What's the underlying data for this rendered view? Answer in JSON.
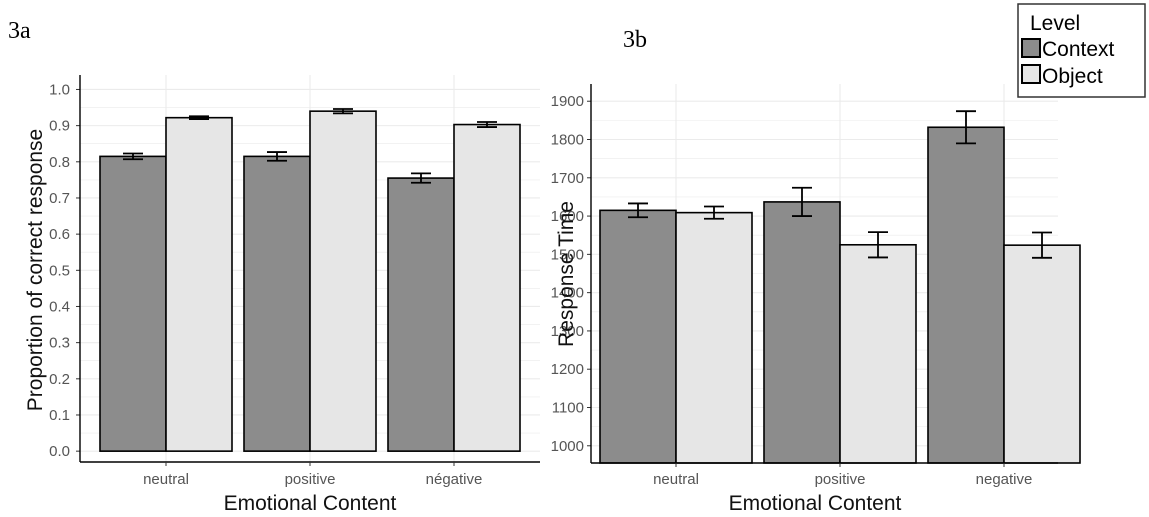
{
  "colors": {
    "context": "#8c8c8c",
    "object": "#e6e6e6",
    "grid": "#ebebeb"
  },
  "legend": {
    "title": "Level",
    "items": [
      {
        "label": "Context",
        "color": "#8c8c8c"
      },
      {
        "label": "Object",
        "color": "#e6e6e6"
      }
    ],
    "placement": "top-right"
  },
  "chart_data": [
    {
      "panel_label": "3a",
      "type": "bar",
      "categories": [
        "neutral",
        "positive",
        "négative"
      ],
      "series": [
        {
          "name": "Context",
          "values": [
            0.815,
            0.815,
            0.755
          ],
          "errors": [
            0.008,
            0.012,
            0.013
          ]
        },
        {
          "name": "Object",
          "values": [
            0.922,
            0.94,
            0.903
          ],
          "errors": [
            0.004,
            0.006,
            0.007
          ]
        }
      ],
      "xlabel": "Emotional Content",
      "ylabel": "Proportion of correct response",
      "ylim": [
        0.0,
        1.0
      ],
      "yticks": [
        "0.0",
        "0.1",
        "0.2",
        "0.3",
        "0.4",
        "0.5",
        "0.6",
        "0.7",
        "0.8",
        "0.9",
        "1.0"
      ],
      "grid": true
    },
    {
      "panel_label": "3b",
      "type": "bar",
      "categories": [
        "neutral",
        "positive",
        "negative"
      ],
      "series": [
        {
          "name": "Context",
          "values": [
            1615,
            1637,
            1832
          ],
          "errors": [
            18,
            37,
            42
          ]
        },
        {
          "name": "Object",
          "values": [
            1609,
            1525,
            1524
          ],
          "errors": [
            16,
            33,
            33
          ]
        }
      ],
      "xlabel": "Emotional Content",
      "ylabel": "Response Time",
      "ylim": [
        1000,
        1900
      ],
      "yticks": [
        "1000",
        "1100",
        "1200",
        "1300",
        "1400",
        "1500",
        "1600",
        "1700",
        "1800",
        "1900"
      ],
      "grid": true
    }
  ]
}
